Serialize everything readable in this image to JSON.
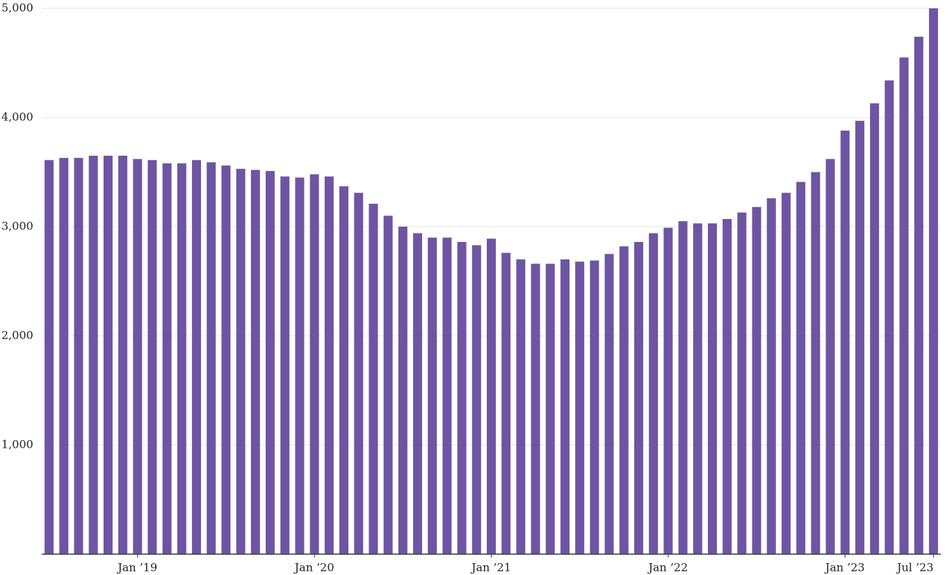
{
  "chart_data": {
    "type": "bar",
    "categories": [
      null,
      null,
      null,
      null,
      null,
      null,
      "Jan ’19",
      null,
      null,
      null,
      null,
      null,
      null,
      null,
      null,
      null,
      null,
      null,
      "Jan ’20",
      null,
      null,
      null,
      null,
      null,
      null,
      null,
      null,
      null,
      null,
      null,
      "Jan ’21",
      null,
      null,
      null,
      null,
      null,
      null,
      null,
      null,
      null,
      null,
      null,
      "Jan ’22",
      null,
      null,
      null,
      null,
      null,
      null,
      null,
      null,
      null,
      null,
      null,
      "Jan ’23",
      null,
      null,
      null,
      null,
      null,
      "Jul ’23"
    ],
    "values": [
      3610,
      3630,
      3630,
      3650,
      3650,
      3650,
      3620,
      3610,
      3580,
      3580,
      3610,
      3590,
      3560,
      3530,
      3520,
      3510,
      3460,
      3450,
      3480,
      3460,
      3370,
      3310,
      3210,
      3100,
      3000,
      2940,
      2900,
      2900,
      2860,
      2830,
      2890,
      2760,
      2700,
      2660,
      2660,
      2700,
      2680,
      2690,
      2750,
      2820,
      2860,
      2940,
      2990,
      3050,
      3030,
      3030,
      3070,
      3130,
      3180,
      3260,
      3310,
      3410,
      3500,
      3620,
      3880,
      3970,
      4130,
      4340,
      4550,
      4740,
      5000
    ],
    "color": "#6e55a3",
    "ylim": [
      0,
      5000
    ],
    "yticks": [
      {
        "value": 1000,
        "label": "1,000"
      },
      {
        "value": 2000,
        "label": "2,000"
      },
      {
        "value": 3000,
        "label": "3,000"
      },
      {
        "value": 4000,
        "label": "4,000"
      },
      {
        "value": 5000,
        "label": "5,000"
      }
    ],
    "grid": true
  }
}
